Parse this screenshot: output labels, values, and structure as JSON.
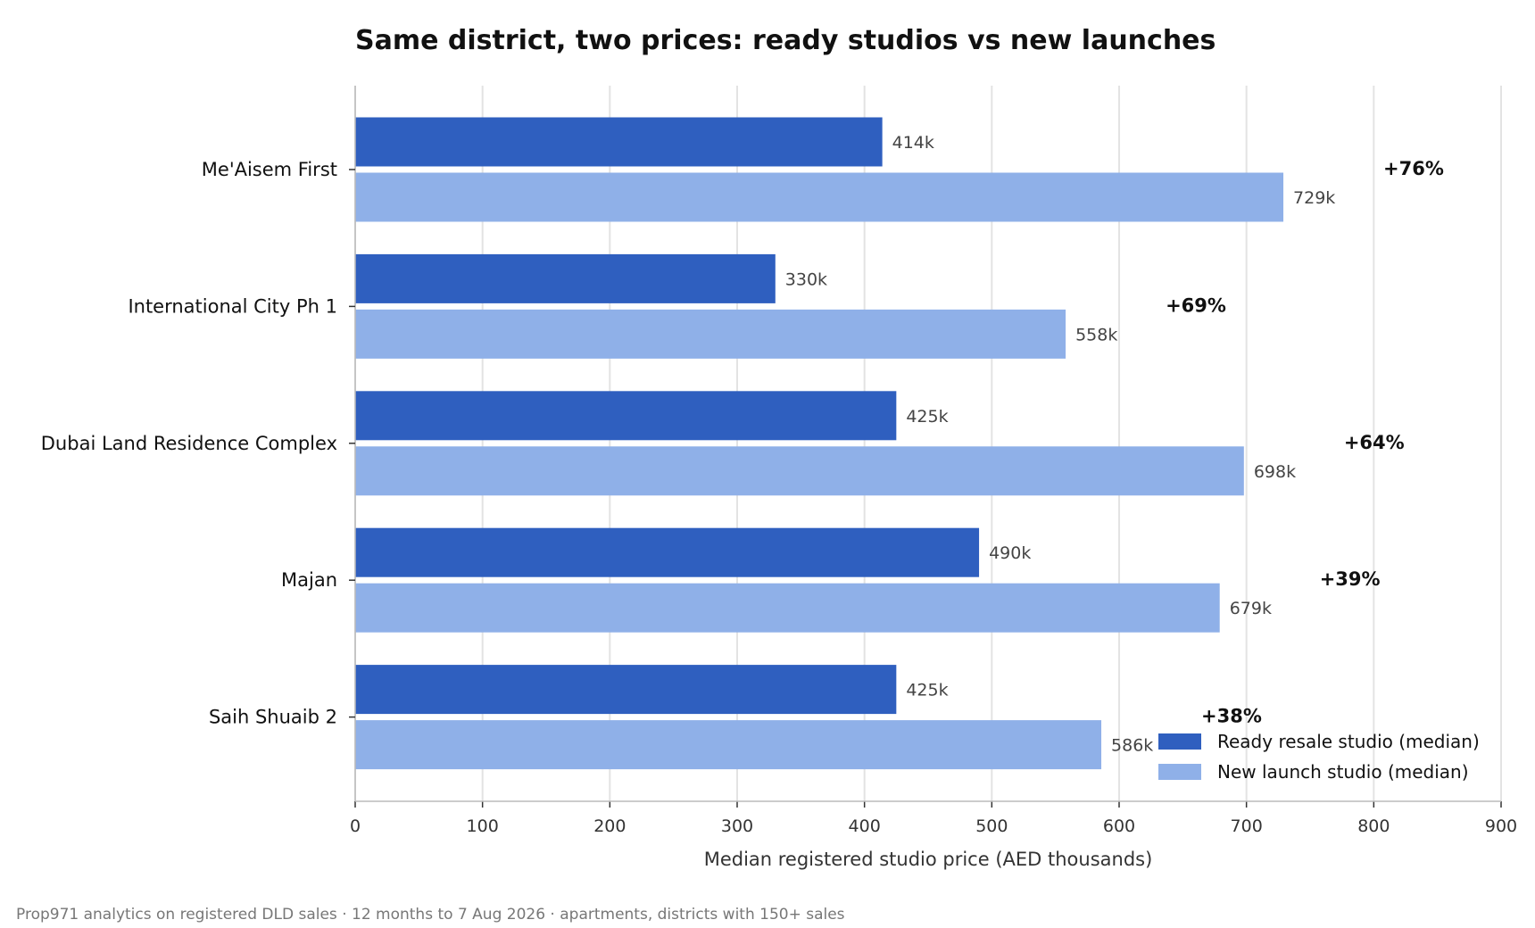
{
  "colors": {
    "ready": "#2f5fbf",
    "launch": "#8fb0e8",
    "grid": "#e3e3e3",
    "axis": "#bbbbbb"
  },
  "chart_data": {
    "type": "bar",
    "orientation": "horizontal",
    "title": "Same district, two prices: ready studios vs new launches",
    "xlabel": "Median registered studio price (AED thousands)",
    "ylabel": "",
    "xlim": [
      0,
      900
    ],
    "xticks": [
      0,
      100,
      200,
      300,
      400,
      500,
      600,
      700,
      800,
      900
    ],
    "grid": true,
    "legend_position": "bottom-right",
    "categories": [
      "Me'Aisem First",
      "International City Ph 1",
      "Dubai Land Residence Complex",
      "Majan",
      "Saih Shuaib 2"
    ],
    "series": [
      {
        "name": "Ready resale studio (median)",
        "values": [
          414,
          330,
          425,
          490,
          425
        ],
        "labels": [
          "414k",
          "330k",
          "425k",
          "490k",
          "425k"
        ]
      },
      {
        "name": "New launch studio (median)",
        "values": [
          729,
          558,
          698,
          679,
          586
        ],
        "labels": [
          "729k",
          "558k",
          "698k",
          "679k",
          "586k"
        ]
      }
    ],
    "premium_labels": [
      "+76%",
      "+69%",
      "+64%",
      "+39%",
      "+38%"
    ]
  },
  "footer": "Prop971 analytics on registered DLD sales  ·  12 months to 7 Aug 2026  ·  apartments, districts with 150+ sales"
}
